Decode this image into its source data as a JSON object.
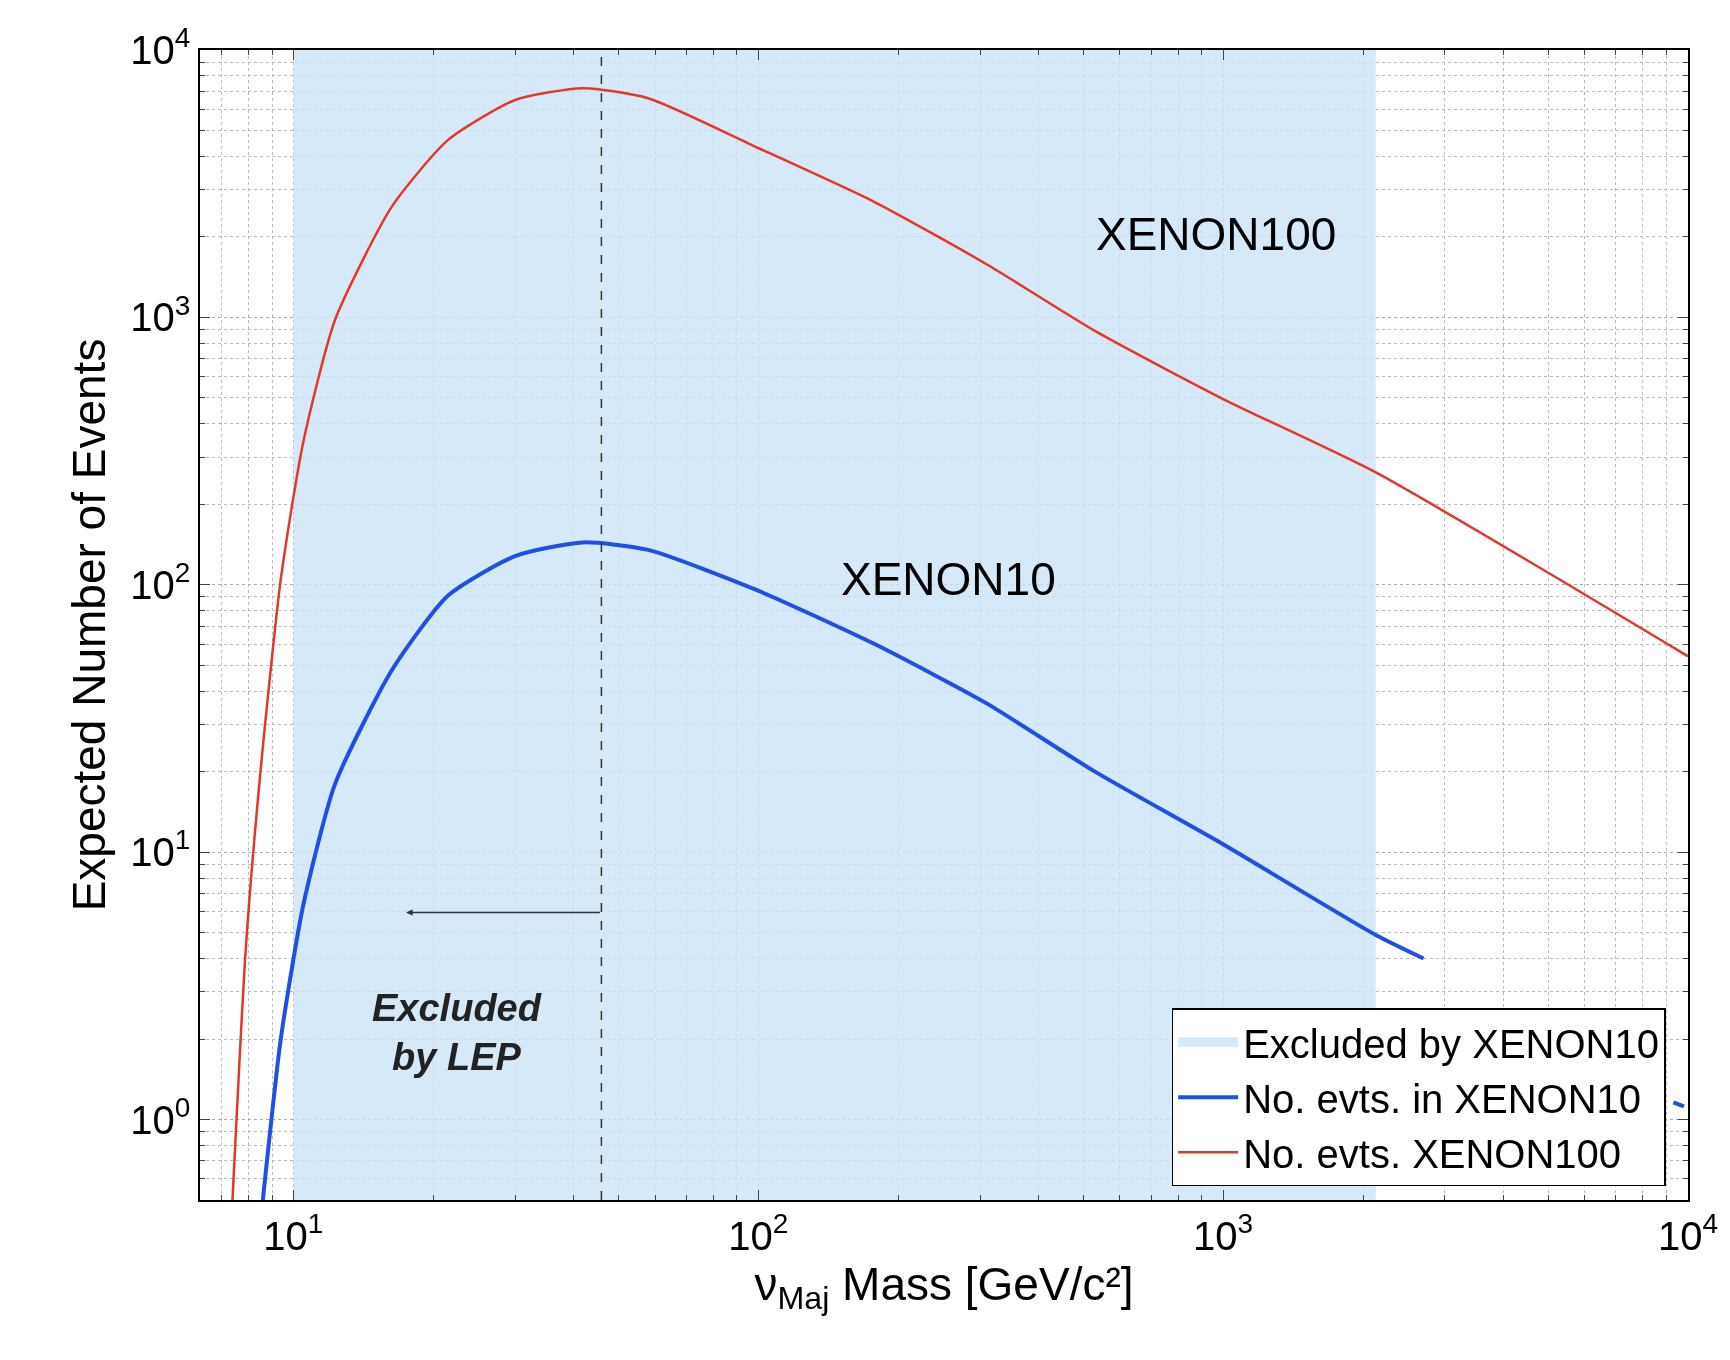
{
  "chart_data": {
    "type": "line",
    "xlabel": "ν$_{Maj}$ Mass [GeV/c²]",
    "ylabel": "Expected Number of Events",
    "log": "xy",
    "grid": true,
    "legend": "bottom right",
    "xlim": [
      6.3,
      10000
    ],
    "ylim": [
      0.5,
      10000
    ],
    "xticks": [
      {
        "value": 10,
        "label": "10$^{1}$"
      },
      {
        "value": 100,
        "label": "10$^{2}$"
      },
      {
        "value": 1000,
        "label": "10$^{3}$"
      },
      {
        "value": 10000,
        "label": "10$^{4}$"
      }
    ],
    "yticks": [
      {
        "value": 1,
        "label": "10$^{0}$"
      },
      {
        "value": 10,
        "label": "10$^{1}$"
      },
      {
        "value": 100,
        "label": "10$^{2}$"
      },
      {
        "value": 1000,
        "label": "10$^{3}$"
      },
      {
        "value": 10000,
        "label": "10$^{4}$"
      }
    ],
    "bands": [
      {
        "axis": "x",
        "from": 10,
        "to": 2130,
        "label": "Excluded by XENON10",
        "color": "#d6e9f8"
      }
    ],
    "ref_lines": [
      {
        "axis": "x",
        "value": 46,
        "label": "Excluded\nby LEP",
        "color": "#333333",
        "line_style": "dashed"
      }
    ],
    "series": [
      {
        "name": "No. evts. in XENON10",
        "color": "#1f4fe6",
        "x": [
          8.6,
          9.4,
          10.5,
          12.3,
          16.3,
          21.5,
          30,
          42,
          58,
          100,
          178,
          310,
          530,
          1000,
          2130,
          2700,
          4000,
          9300,
          9800
        ],
        "values": [
          0.5,
          2,
          6.3,
          18,
          48,
          91,
          128,
          144,
          135,
          95,
          60,
          36,
          20,
          10.7,
          4.9,
          4.0,
          null,
          1.16,
          1.12
        ]
      },
      {
        "name": "No. evts. XENON100",
        "color": "#e0392b",
        "x": [
          7.4,
          7.9,
          8.5,
          9.4,
          10.5,
          12.3,
          16.3,
          21.5,
          30,
          42,
          58,
          100,
          178,
          310,
          530,
          1000,
          2130,
          10000
        ],
        "values": [
          0.5,
          4.3,
          20,
          105,
          340,
          980,
          2600,
          4600,
          6500,
          7200,
          6600,
          4300,
          2700,
          1580,
          890,
          495,
          263,
          54
        ]
      }
    ],
    "annotations": [
      "XENON100",
      "XENON10"
    ]
  }
}
